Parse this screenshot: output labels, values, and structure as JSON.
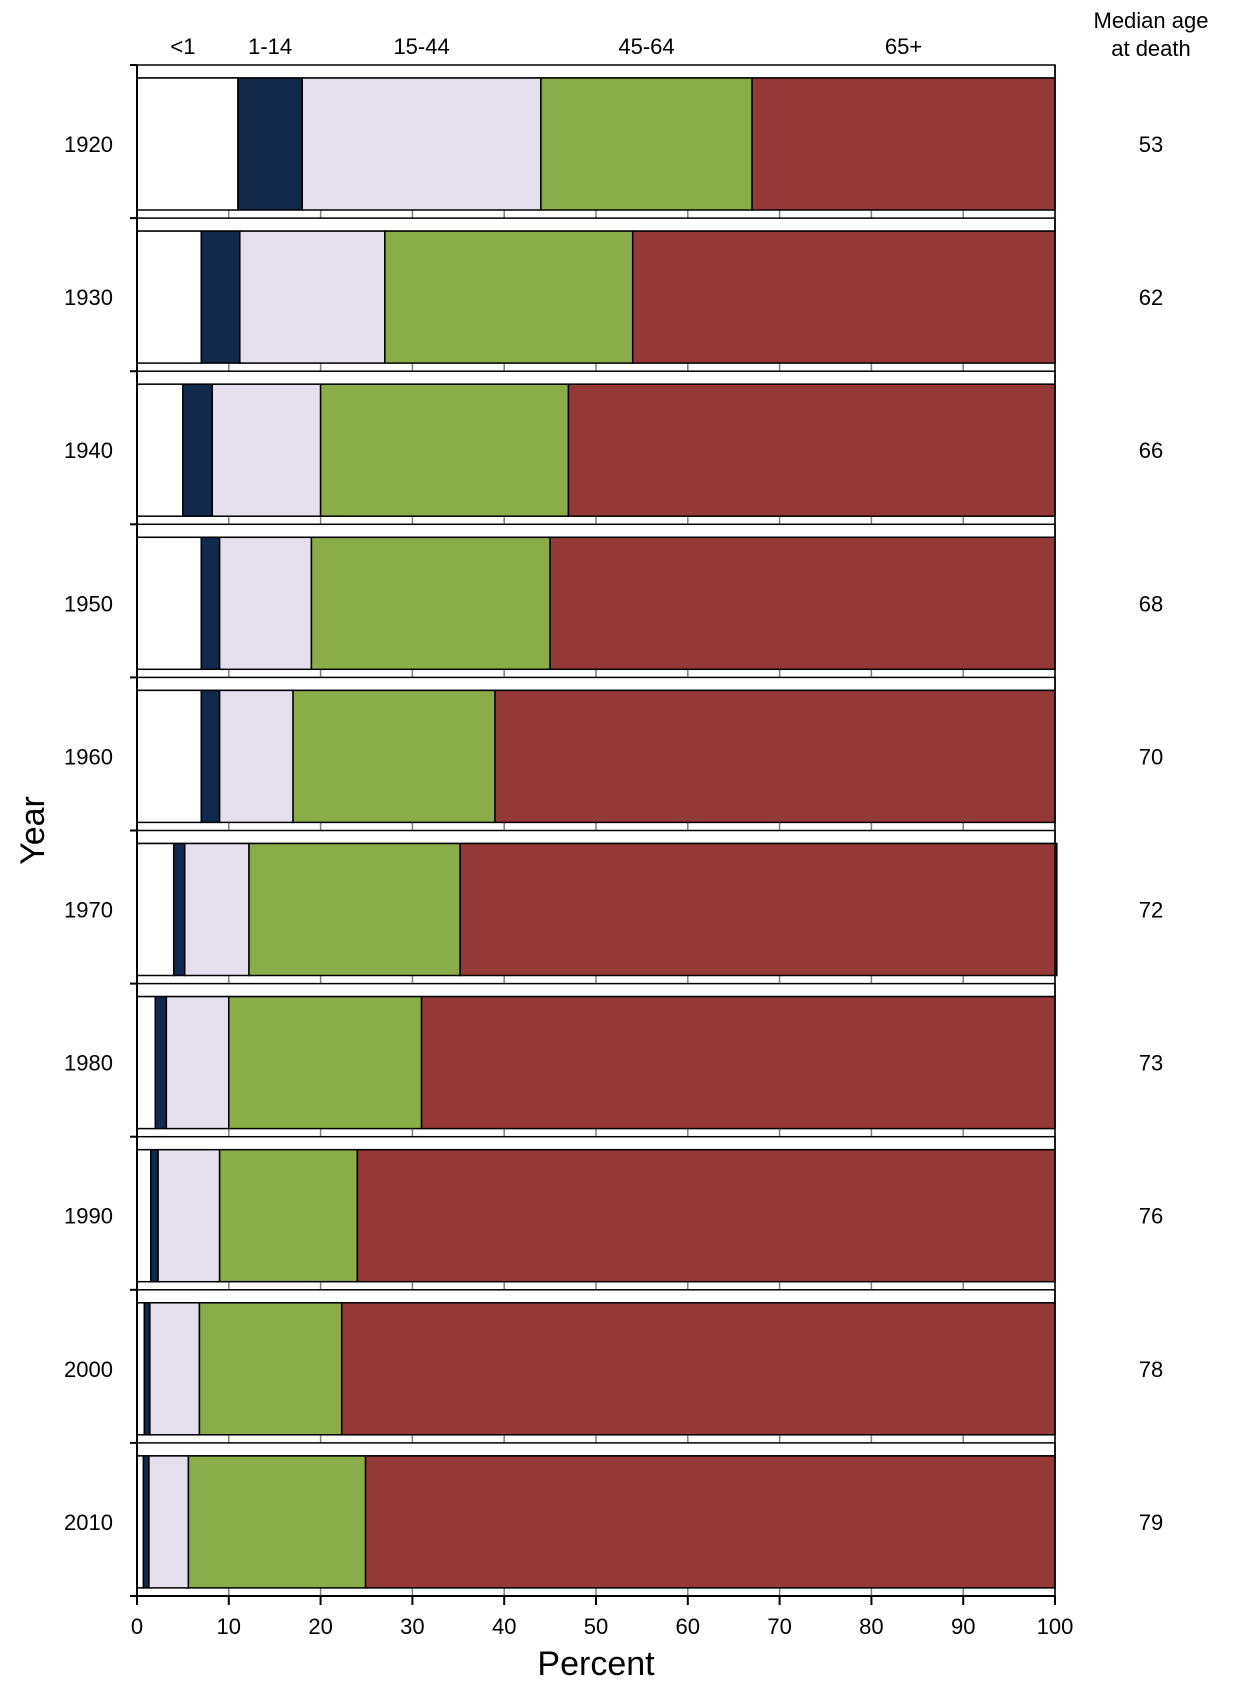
{
  "chart_data": {
    "type": "bar",
    "orientation": "horizontal",
    "stacked": true,
    "normalized_percent": true,
    "categories": [
      "1920",
      "1930",
      "1940",
      "1950",
      "1960",
      "1970",
      "1980",
      "1990",
      "2000",
      "2010"
    ],
    "series": [
      {
        "name": "<1",
        "color": "#ffffff",
        "values": [
          11,
          7,
          5,
          7,
          7,
          4,
          2,
          1.5,
          0.8,
          0.7
        ]
      },
      {
        "name": "1-14",
        "color": "#13294b",
        "values": [
          7,
          4.2,
          3.2,
          2,
          2,
          1.2,
          1.2,
          0.8,
          0.6,
          0.6
        ]
      },
      {
        "name": "15-44",
        "color": "#e6e0ee",
        "values": [
          26,
          15.8,
          11.8,
          10,
          8,
          7,
          6.8,
          6.7,
          5.4,
          4.3
        ]
      },
      {
        "name": "45-64",
        "color": "#8aac49",
        "values": [
          23,
          27,
          27,
          26,
          22,
          23,
          21,
          15,
          15.5,
          19.3
        ]
      },
      {
        "name": "65+",
        "color": "#953838",
        "values": [
          33,
          46,
          53,
          55,
          61,
          65,
          69,
          76,
          77.7,
          75.1
        ]
      }
    ],
    "median_age_header": [
      "Median age",
      "at death"
    ],
    "median_age_at_death": [
      "53",
      "62",
      "66",
      "68",
      "70",
      "72",
      "73",
      "76",
      "78",
      "79"
    ],
    "xlabel": "Percent",
    "ylabel": "Year",
    "xlim": [
      0,
      100
    ],
    "xticks": [
      "0",
      "10",
      "20",
      "30",
      "40",
      "50",
      "60",
      "70",
      "80",
      "90",
      "100"
    ],
    "grid": "vertical lines at every 10",
    "legend_position": "top"
  }
}
